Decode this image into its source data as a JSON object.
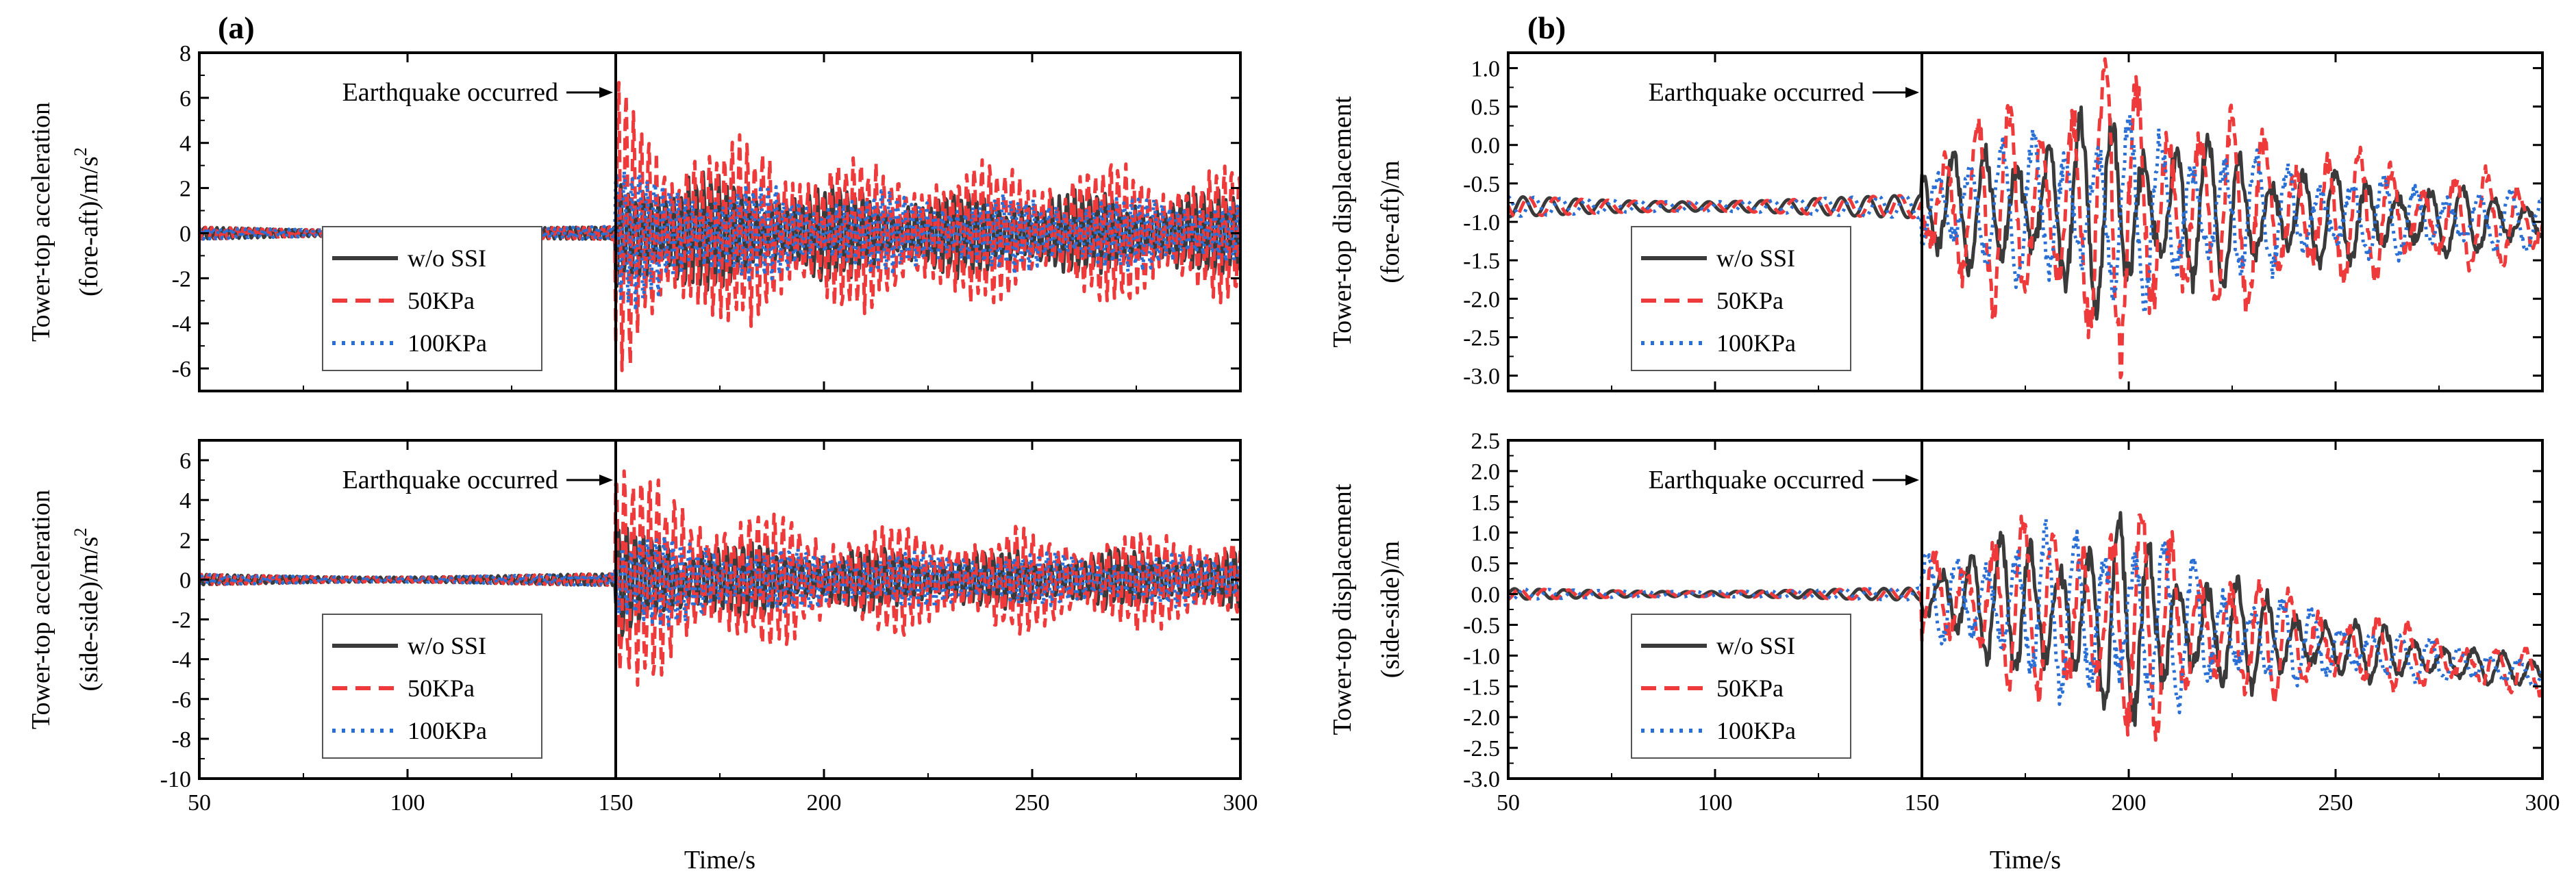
{
  "colors": {
    "wo_ssi": "#3a3a3a",
    "kpa50": "#ee3a3a",
    "kpa100": "#2a6fd6",
    "axis": "#000000"
  },
  "legend": {
    "series": [
      {
        "key": "wo_ssi",
        "label": "w/o SSI",
        "style": "solid"
      },
      {
        "key": "kpa50",
        "label": "50KPa",
        "style": "dashed"
      },
      {
        "key": "kpa100",
        "label": "100KPa",
        "style": "dotted"
      }
    ]
  },
  "chart_data": [
    {
      "id": "a-top",
      "panel_letter": "(a)",
      "type": "line",
      "ylabel_line1": "Tower-top acceleration",
      "ylabel_line2": "(fore-aft)/m/s",
      "ylabel_sup": "2",
      "xlabel": "",
      "xlim": [
        50,
        300
      ],
      "ylim": [
        -7,
        8
      ],
      "yticks": [
        -6,
        -4,
        -2,
        0,
        2,
        4,
        6,
        8
      ],
      "ytick_labels": [
        "-6",
        "-4",
        "-2",
        "0",
        "2",
        "4",
        "6",
        "8"
      ],
      "xticks": [
        50,
        100,
        150,
        200,
        250,
        300
      ],
      "xtick_labels": [],
      "event_time": 150,
      "annotation": "Earthquake occurred",
      "legend_position": "lower-left",
      "signal": {
        "pre_amp": 0.3,
        "peak_amp": {
          "wo_ssi": 3.5,
          "kpa50": 6.2,
          "kpa100": 3.3
        },
        "tail_amp": {
          "wo_ssi": 1.7,
          "kpa50": 2.9,
          "kpa100": 1.6
        },
        "freq": 0.55,
        "base": 0.0,
        "trend_end": 0.0,
        "decay": 0.04,
        "envelope": "burst"
      }
    },
    {
      "id": "a-bottom",
      "panel_letter": "",
      "type": "line",
      "ylabel_line1": "Tower-top acceleration",
      "ylabel_line2": "(side-side)/m/s",
      "ylabel_sup": "2",
      "xlabel": "Time/s",
      "xlim": [
        50,
        300
      ],
      "ylim": [
        -10,
        7
      ],
      "yticks": [
        -10,
        -8,
        -6,
        -4,
        -2,
        0,
        2,
        4,
        6
      ],
      "ytick_labels": [
        "-10",
        "-8",
        "-6",
        "-4",
        "-2",
        "0",
        "2",
        "4",
        "6"
      ],
      "xticks": [
        50,
        100,
        150,
        200,
        250,
        300
      ],
      "xtick_labels": [
        "50",
        "100",
        "150",
        "200",
        "250",
        "300"
      ],
      "event_time": 150,
      "annotation": "Earthquake occurred",
      "legend_position": "lower-left",
      "signal": {
        "pre_amp": 0.3,
        "peak_amp": {
          "wo_ssi": 2.8,
          "kpa50": 6.0,
          "kpa100": 2.8
        },
        "tail_amp": {
          "wo_ssi": 1.4,
          "kpa50": 2.4,
          "kpa100": 1.3
        },
        "freq": 0.5,
        "base": 0.0,
        "trend_end": 0.0,
        "decay": 0.04,
        "envelope": "burst"
      }
    },
    {
      "id": "b-top",
      "panel_letter": "(b)",
      "type": "line",
      "ylabel_line1": "Tower-top displacement",
      "ylabel_line2": "(fore-aft)/m",
      "ylabel_sup": "",
      "xlabel": "",
      "xlim": [
        50,
        300
      ],
      "ylim": [
        -3.2,
        1.2
      ],
      "yticks": [
        -3.0,
        -2.5,
        -2.0,
        -1.5,
        -1.0,
        -0.5,
        0.0,
        0.5,
        1.0
      ],
      "ytick_labels": [
        "-3.0",
        "-2.5",
        "-2.0",
        "-1.5",
        "-1.0",
        "-0.5",
        "0.0",
        "0.5",
        "1.0"
      ],
      "xticks": [
        50,
        100,
        150,
        200,
        250,
        300
      ],
      "xtick_labels": [],
      "event_time": 150,
      "annotation": "Earthquake occurred",
      "legend_position": "lower-left",
      "signal": {
        "pre_amp": 0.15,
        "peak_amp": {
          "wo_ssi": 1.1,
          "kpa50": 1.6,
          "kpa100": 1.05
        },
        "tail_amp": {
          "wo_ssi": 0.7,
          "kpa50": 1.1,
          "kpa100": 0.7
        },
        "freq": 0.13,
        "base": -0.8,
        "trend_end": -1.0,
        "decay": 0.02,
        "envelope": "grow"
      }
    },
    {
      "id": "b-bottom",
      "panel_letter": "",
      "type": "line",
      "ylabel_line1": "Tower-top displacement",
      "ylabel_line2": "(side-side)/m",
      "ylabel_sup": "",
      "xlabel": "Time/s",
      "xlim": [
        50,
        300
      ],
      "ylim": [
        -3.0,
        2.5
      ],
      "yticks": [
        -3.0,
        -2.5,
        -2.0,
        -1.5,
        -1.0,
        -0.5,
        0.0,
        0.5,
        1.0,
        1.5,
        2.0,
        2.5
      ],
      "ytick_labels": [
        "-3.0",
        "-2.5",
        "-2.0",
        "-1.5",
        "-1.0",
        "-0.5",
        "0.0",
        "0.5",
        "1.0",
        "1.5",
        "2.0",
        "2.5"
      ],
      "xticks": [
        50,
        100,
        150,
        200,
        250,
        300
      ],
      "xtick_labels": [
        "50",
        "100",
        "150",
        "200",
        "250",
        "300"
      ],
      "event_time": 150,
      "annotation": "Earthquake occurred",
      "legend_position": "lower-left",
      "signal": {
        "pre_amp": 0.1,
        "peak_amp": {
          "wo_ssi": 1.5,
          "kpa50": 1.7,
          "kpa100": 1.5
        },
        "tail_amp": {
          "wo_ssi": 0.35,
          "kpa50": 0.7,
          "kpa100": 0.35
        },
        "freq": 0.14,
        "base": 0.0,
        "trend_end": -1.3,
        "decay": 0.025,
        "envelope": "grow"
      }
    }
  ]
}
